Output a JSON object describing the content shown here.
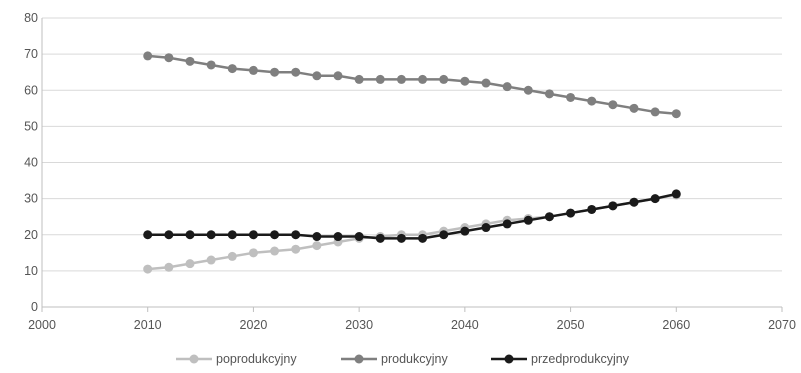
{
  "chart_data": {
    "type": "line",
    "title": "",
    "xlabel": "",
    "ylabel": "",
    "xlim": [
      2000,
      2070
    ],
    "ylim": [
      0,
      80
    ],
    "x_ticks": [
      2000,
      2010,
      2020,
      2030,
      2040,
      2050,
      2060,
      2070
    ],
    "y_ticks": [
      0,
      10,
      20,
      30,
      40,
      50,
      60,
      70,
      80
    ],
    "grid": "horizontal",
    "legend_position": "bottom",
    "x": [
      2010,
      2012,
      2014,
      2016,
      2018,
      2020,
      2022,
      2024,
      2026,
      2028,
      2030,
      2032,
      2034,
      2036,
      2038,
      2040,
      2042,
      2044,
      2046,
      2048,
      2050,
      2052,
      2054,
      2056,
      2058,
      2060
    ],
    "series": [
      {
        "name": "poprodukcyjny",
        "color": "#bfbfbf",
        "values": [
          10.5,
          11,
          12,
          13,
          14,
          15,
          15.5,
          16,
          17,
          18,
          19,
          19.5,
          20,
          20,
          21,
          22,
          23,
          24,
          24.5,
          25,
          26,
          27,
          28,
          29,
          30,
          31
        ]
      },
      {
        "name": "produkcyjny",
        "color": "#7f7f7f",
        "values": [
          69.5,
          69,
          68,
          67,
          66,
          65.5,
          65,
          65,
          64,
          64,
          63,
          63,
          63,
          63,
          63,
          62.5,
          62,
          61,
          60,
          59,
          58,
          57,
          56,
          55,
          54,
          53.5
        ]
      },
      {
        "name": "przedprodukcyjny",
        "color": "#1a1a1a",
        "values": [
          20,
          20,
          20,
          20,
          20,
          20,
          20,
          20,
          19.5,
          19.5,
          19.5,
          19,
          19,
          19,
          20,
          21,
          22,
          23,
          24,
          25,
          26,
          27,
          28,
          29,
          30,
          31.3
        ]
      }
    ]
  }
}
